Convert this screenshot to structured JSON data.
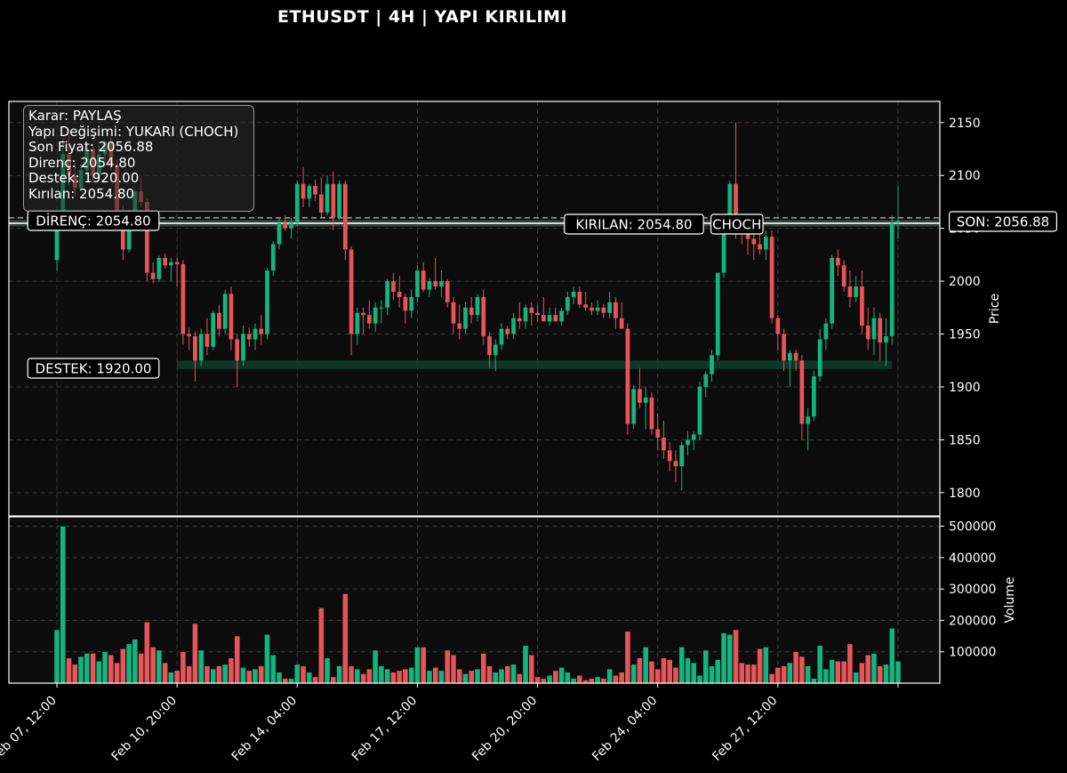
{
  "title": "ETHUSDT | 4H | YAPI KIRILIMI",
  "info_box": {
    "lines": [
      "Karar: PAYLAŞ",
      "Yapı Değişimi: YUKARI (CHOCH)",
      "Son Fiyat: 2056.88",
      "Direnç: 2054.80",
      "Destek: 1920.00",
      "Kırılan: 2054.80"
    ]
  },
  "labels": {
    "resistance": "DİRENÇ: 2054.80",
    "support": "DESTEK: 1920.00",
    "broken": "KIRILAN: 2054.80",
    "choch": "CHOCH",
    "last": "SON: 2056.88"
  },
  "colors": {
    "up": "#13b57f",
    "down": "#e8545a",
    "background": "#0c0c0c",
    "grid": "#3a3a3a",
    "resistance_line": "#d7d7d7",
    "support_zone": "#0f3d2a"
  },
  "chart_data": {
    "type": "candlestick",
    "title": "ETHUSDT | 4H | YAPI KIRILIMI",
    "ylabel_price": "Price",
    "ylabel_volume": "Volume",
    "ylim_price": [
      1778,
      2170
    ],
    "ylim_volume": [
      0,
      530000
    ],
    "price_ticks": [
      1800,
      1850,
      1900,
      1950,
      2000,
      2050,
      2100,
      2150
    ],
    "volume_ticks": [
      100000,
      200000,
      300000,
      400000,
      500000
    ],
    "volume_tick_labels": [
      "100000",
      "200000",
      "300000",
      "400000",
      "500000"
    ],
    "x_tick_labels": [
      "Feb 07, 12:00",
      "Feb 10, 20:00",
      "Feb 14, 04:00",
      "Feb 17, 12:00",
      "Feb 20, 20:00",
      "Feb 24, 04:00",
      "Feb 27, 12:00"
    ],
    "x_tick_index": [
      0,
      20,
      40,
      60,
      80,
      100,
      120
    ],
    "x_end_index": 140,
    "grid": true,
    "levels": {
      "resistance": 2054.8,
      "support": 1920.0,
      "last_price": 2056.88,
      "broken": 2054.8
    },
    "choch_index": 112,
    "candles": [
      [
        2020,
        2065,
        2010,
        2058,
        170000
      ],
      [
        2058,
        2135,
        2050,
        2120,
        500000
      ],
      [
        2120,
        2138,
        2090,
        2100,
        80000
      ],
      [
        2100,
        2112,
        2080,
        2088,
        60000
      ],
      [
        2088,
        2112,
        2085,
        2105,
        85000
      ],
      [
        2105,
        2130,
        2095,
        2125,
        95000
      ],
      [
        2125,
        2130,
        2095,
        2100,
        95000
      ],
      [
        2100,
        2128,
        2095,
        2120,
        70000
      ],
      [
        2120,
        2133,
        2108,
        2132,
        100000
      ],
      [
        2132,
        2136,
        2105,
        2110,
        90000
      ],
      [
        2110,
        2115,
        2058,
        2066,
        65000
      ],
      [
        2066,
        2072,
        2020,
        2030,
        110000
      ],
      [
        2030,
        2062,
        2027,
        2058,
        125000
      ],
      [
        2058,
        2086,
        2052,
        2085,
        140000
      ],
      [
        2085,
        2098,
        2070,
        2075,
        95000
      ],
      [
        2075,
        2078,
        2000,
        2008,
        195000
      ],
      [
        2008,
        2018,
        1998,
        2002,
        115000
      ],
      [
        2002,
        2024,
        1999,
        2022,
        105000
      ],
      [
        2022,
        2026,
        2012,
        2015,
        65000
      ],
      [
        2015,
        2022,
        2000,
        2018,
        35000
      ],
      [
        2018,
        2022,
        1995,
        2016,
        40000
      ],
      [
        2016,
        2020,
        1940,
        1950,
        100000
      ],
      [
        1950,
        1956,
        1935,
        1948,
        55000
      ],
      [
        1948,
        1952,
        1905,
        1925,
        190000
      ],
      [
        1925,
        1955,
        1920,
        1950,
        105000
      ],
      [
        1950,
        1965,
        1930,
        1938,
        55000
      ],
      [
        1938,
        1972,
        1935,
        1970,
        45000
      ],
      [
        1970,
        1978,
        1948,
        1955,
        55000
      ],
      [
        1955,
        1992,
        1950,
        1988,
        60000
      ],
      [
        1988,
        1995,
        1935,
        1945,
        80000
      ],
      [
        1945,
        1950,
        1900,
        1925,
        150000
      ],
      [
        1925,
        1958,
        1920,
        1950,
        50000
      ],
      [
        1950,
        1956,
        1938,
        1945,
        40000
      ],
      [
        1945,
        1960,
        1935,
        1955,
        45000
      ],
      [
        1955,
        1968,
        1940,
        1950,
        55000
      ],
      [
        1950,
        2012,
        1945,
        2010,
        155000
      ],
      [
        2010,
        2038,
        2005,
        2035,
        90000
      ],
      [
        2035,
        2060,
        2030,
        2055,
        35000
      ],
      [
        2055,
        2062,
        2048,
        2050,
        15000
      ],
      [
        2050,
        2060,
        2040,
        2055,
        15000
      ],
      [
        2055,
        2095,
        2052,
        2092,
        60000
      ],
      [
        2092,
        2108,
        2070,
        2078,
        55000
      ],
      [
        2078,
        2092,
        2070,
        2090,
        35000
      ],
      [
        2090,
        2096,
        2076,
        2082,
        20000
      ],
      [
        2082,
        2098,
        2060,
        2065,
        240000
      ],
      [
        2065,
        2100,
        2062,
        2092,
        80000
      ],
      [
        2092,
        2104,
        2048,
        2060,
        20000
      ],
      [
        2060,
        2095,
        2058,
        2092,
        55000
      ],
      [
        2092,
        2095,
        2020,
        2030,
        285000
      ],
      [
        2030,
        2033,
        1930,
        1950,
        55000
      ],
      [
        1950,
        1975,
        1940,
        1970,
        45000
      ],
      [
        1970,
        1975,
        1950,
        1968,
        30000
      ],
      [
        1968,
        1982,
        1955,
        1960,
        45000
      ],
      [
        1960,
        1980,
        1952,
        1975,
        105000
      ],
      [
        1975,
        1982,
        1960,
        1975,
        55000
      ],
      [
        1975,
        2002,
        1968,
        2000,
        45000
      ],
      [
        2000,
        2008,
        1982,
        1990,
        35000
      ],
      [
        1990,
        2005,
        1975,
        1985,
        40000
      ],
      [
        1985,
        1988,
        1960,
        1972,
        45000
      ],
      [
        1972,
        1992,
        1965,
        1985,
        50000
      ],
      [
        1985,
        2015,
        1980,
        2010,
        115000
      ],
      [
        2010,
        2018,
        1990,
        1992,
        115000
      ],
      [
        1992,
        2003,
        1985,
        2000,
        40000
      ],
      [
        2000,
        2022,
        1992,
        1995,
        50000
      ],
      [
        1995,
        2010,
        1985,
        2000,
        40000
      ],
      [
        2000,
        2002,
        1975,
        1980,
        105000
      ],
      [
        1980,
        1985,
        1950,
        1960,
        90000
      ],
      [
        1960,
        1978,
        1945,
        1955,
        45000
      ],
      [
        1955,
        1980,
        1950,
        1975,
        30000
      ],
      [
        1975,
        1985,
        1960,
        1968,
        40000
      ],
      [
        1968,
        1988,
        1962,
        1985,
        45000
      ],
      [
        1985,
        1992,
        1940,
        1948,
        95000
      ],
      [
        1948,
        1952,
        1918,
        1930,
        55000
      ],
      [
        1930,
        1945,
        1915,
        1940,
        35000
      ],
      [
        1940,
        1960,
        1935,
        1955,
        45000
      ],
      [
        1955,
        1958,
        1945,
        1950,
        55000
      ],
      [
        1950,
        1970,
        1945,
        1965,
        60000
      ],
      [
        1965,
        1980,
        1955,
        1962,
        30000
      ],
      [
        1962,
        1978,
        1955,
        1975,
        120000
      ],
      [
        1975,
        1980,
        1958,
        1970,
        90000
      ],
      [
        1970,
        1978,
        1962,
        1968,
        20000
      ],
      [
        1968,
        1985,
        1963,
        1962,
        15000
      ],
      [
        1962,
        1975,
        1958,
        1968,
        25000
      ],
      [
        1968,
        1975,
        1962,
        1962,
        40000
      ],
      [
        1962,
        1975,
        1958,
        1972,
        50000
      ],
      [
        1972,
        1990,
        1968,
        1985,
        35000
      ],
      [
        1985,
        1995,
        1978,
        1990,
        15000
      ],
      [
        1990,
        1995,
        1975,
        1978,
        25000
      ],
      [
        1978,
        1990,
        1972,
        1975,
        10000
      ],
      [
        1975,
        1980,
        1968,
        1972,
        15000
      ],
      [
        1972,
        1982,
        1968,
        1975,
        20000
      ],
      [
        1975,
        1978,
        1965,
        1970,
        15000
      ],
      [
        1970,
        1990,
        1965,
        1980,
        45000
      ],
      [
        1980,
        1985,
        1955,
        1965,
        25000
      ],
      [
        1965,
        1980,
        1955,
        1955,
        35000
      ],
      [
        1955,
        1960,
        1855,
        1865,
        165000
      ],
      [
        1865,
        1902,
        1860,
        1898,
        60000
      ],
      [
        1898,
        1918,
        1880,
        1885,
        80000
      ],
      [
        1885,
        1900,
        1860,
        1890,
        115000
      ],
      [
        1890,
        1895,
        1855,
        1860,
        70000
      ],
      [
        1860,
        1875,
        1840,
        1852,
        45000
      ],
      [
        1852,
        1868,
        1832,
        1840,
        80000
      ],
      [
        1840,
        1848,
        1820,
        1830,
        75000
      ],
      [
        1830,
        1840,
        1810,
        1825,
        50000
      ],
      [
        1825,
        1848,
        1802,
        1845,
        115000
      ],
      [
        1845,
        1858,
        1835,
        1850,
        80000
      ],
      [
        1850,
        1858,
        1840,
        1855,
        65000
      ],
      [
        1855,
        1905,
        1850,
        1900,
        25000
      ],
      [
        1900,
        1915,
        1890,
        1912,
        105000
      ],
      [
        1912,
        1935,
        1905,
        1930,
        55000
      ],
      [
        1930,
        2005,
        1925,
        2008,
        75000
      ],
      [
        2008,
        2055,
        2003,
        2050,
        160000
      ],
      [
        2050,
        2095,
        2045,
        2092,
        155000
      ],
      [
        2092,
        2150,
        2040,
        2052,
        170000
      ],
      [
        2052,
        2058,
        2035,
        2045,
        65000
      ],
      [
        2045,
        2055,
        2025,
        2040,
        60000
      ],
      [
        2040,
        2055,
        2020,
        2035,
        60000
      ],
      [
        2035,
        2045,
        2025,
        2030,
        110000
      ],
      [
        2030,
        2048,
        2020,
        2042,
        115000
      ],
      [
        2042,
        2048,
        1960,
        1965,
        30000
      ],
      [
        1965,
        1968,
        1935,
        1950,
        50000
      ],
      [
        1950,
        1955,
        1915,
        1925,
        55000
      ],
      [
        1925,
        1935,
        1900,
        1932,
        65000
      ],
      [
        1932,
        1935,
        1915,
        1925,
        100000
      ],
      [
        1925,
        1930,
        1850,
        1865,
        85000
      ],
      [
        1865,
        1880,
        1840,
        1872,
        55000
      ],
      [
        1872,
        1915,
        1868,
        1910,
        15000
      ],
      [
        1910,
        1955,
        1905,
        1945,
        120000
      ],
      [
        1945,
        1965,
        1935,
        1960,
        45000
      ],
      [
        1960,
        2025,
        1955,
        2022,
        75000
      ],
      [
        2022,
        2030,
        2005,
        2015,
        70000
      ],
      [
        2015,
        2020,
        1990,
        1995,
        70000
      ],
      [
        1995,
        2010,
        1975,
        1985,
        125000
      ],
      [
        1985,
        2005,
        1980,
        1995,
        35000
      ],
      [
        1995,
        2010,
        1950,
        1958,
        65000
      ],
      [
        1958,
        1975,
        1935,
        1945,
        90000
      ],
      [
        1945,
        1975,
        1930,
        1965,
        95000
      ],
      [
        1965,
        1970,
        1925,
        1942,
        55000
      ],
      [
        1942,
        1965,
        1920,
        1948,
        60000
      ],
      [
        1948,
        2062,
        1940,
        2055,
        175000
      ],
      [
        2055,
        2090,
        2040,
        2057,
        70000
      ]
    ]
  }
}
